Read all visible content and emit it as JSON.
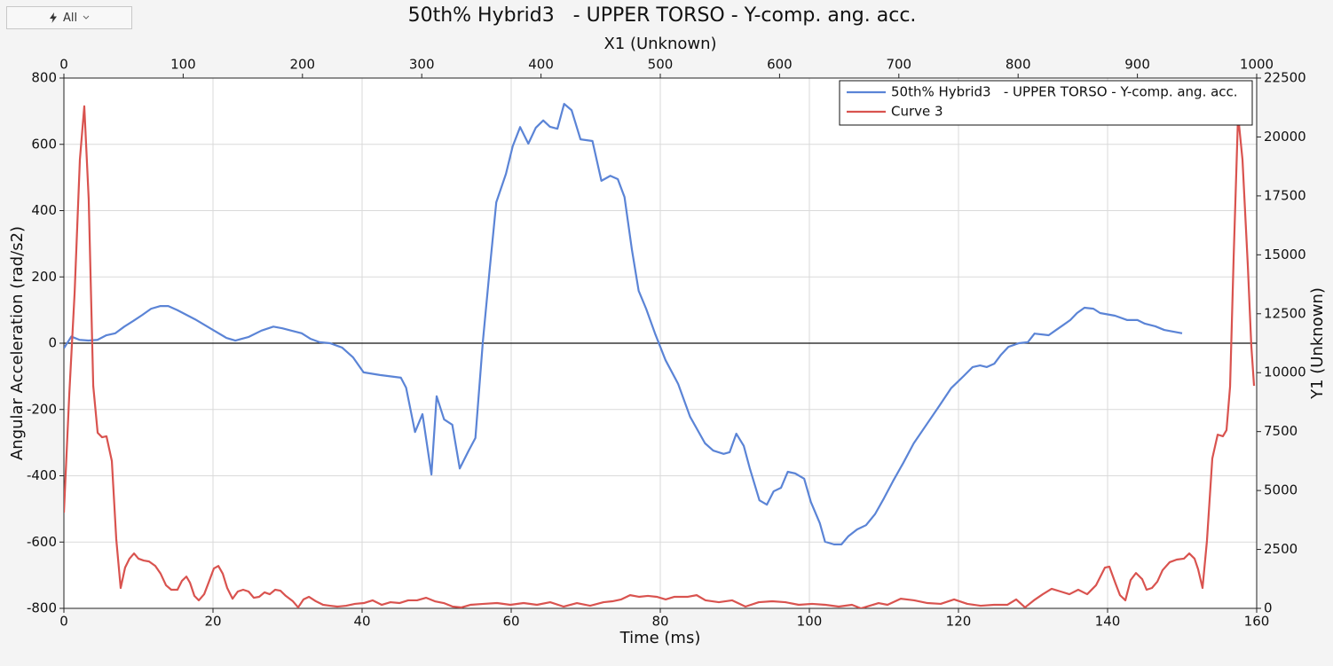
{
  "controls": {
    "filter": "All"
  },
  "chart_data": {
    "type": "line",
    "title": "50th% Hybrid3   - UPPER TORSO - Y-comp. ang. acc.",
    "xlabel": "Time (ms)",
    "ylabel": "Angular Acceleration (rad/s2)",
    "x2label": "X1 (Unknown)",
    "y2label": "Y1 (Unknown)",
    "xlim": [
      0,
      160
    ],
    "xticks": [
      0,
      20,
      40,
      60,
      80,
      100,
      120,
      140,
      160
    ],
    "ylim": [
      -800,
      800
    ],
    "yticks": [
      -800,
      -600,
      -400,
      -200,
      0,
      200,
      400,
      600,
      800
    ],
    "x2lim": [
      0,
      1000
    ],
    "x2ticks": [
      0,
      100,
      200,
      300,
      400,
      500,
      600,
      700,
      800,
      900,
      1000
    ],
    "y2lim": [
      0,
      22500
    ],
    "y2ticks": [
      0,
      2500,
      5000,
      7500,
      10000,
      12500,
      15000,
      17500,
      20000,
      22500
    ],
    "grid": true,
    "zero_line": true,
    "legend": "upper right",
    "series": [
      {
        "name": "50th% Hybrid3   - UPPER TORSO - Y-comp. ang. acc.",
        "color": "#5b84d6",
        "label_color": "#3558c0",
        "x": [
          0,
          1,
          2.1,
          3.3,
          4.5,
          5.7,
          6.9,
          8.1,
          9.3,
          10.5,
          11.7,
          12.9,
          14,
          15.2,
          17.6,
          20,
          21.8,
          23,
          24.8,
          26.5,
          28.1,
          29.3,
          30.5,
          31.9,
          33.1,
          34.3,
          35.7,
          37.3,
          38.8,
          40.2,
          42.4,
          43.8,
          45.2,
          45.9,
          47.1,
          48.1,
          49.3,
          50,
          51,
          52.1,
          53.1,
          54.3,
          55.2,
          56.2,
          57.1,
          58,
          59.3,
          60.2,
          61.2,
          62.3,
          63.3,
          64.3,
          65.2,
          66.2,
          67.1,
          68.1,
          69.3,
          70.9,
          72.1,
          73.3,
          74.3,
          75.2,
          76.2,
          77.1,
          78.1,
          79.3,
          80.7,
          82.4,
          84,
          86,
          87.1,
          88.5,
          89.3,
          90.2,
          91.2,
          92,
          93.3,
          94.3,
          95.2,
          96.2,
          97.1,
          98.1,
          99.3,
          100.2,
          101.4,
          102.1,
          103.3,
          104.3,
          105.2,
          106.4,
          107.6,
          108.8,
          110,
          111.2,
          112.6,
          114,
          115.7,
          117.4,
          119,
          120.7,
          121.9,
          122.9,
          123.8,
          124.8,
          125.7,
          126.7,
          128.1,
          129.3,
          130.2,
          132.1,
          133.1,
          134,
          135,
          135.9,
          136.9,
          138.1,
          139,
          141,
          142.6,
          144,
          145,
          146.4,
          147.6,
          148.8,
          150
        ],
        "values": [
          -15,
          20,
          10,
          8,
          10,
          24,
          30,
          50,
          67,
          85,
          104,
          112,
          112,
          100,
          72,
          40,
          16,
          8,
          19,
          38,
          50,
          45,
          38,
          30,
          13,
          3,
          0,
          -13,
          -43,
          -88,
          -96,
          -100,
          -104,
          -134,
          -268,
          -214,
          -396,
          -160,
          -230,
          -246,
          -378,
          -324,
          -286,
          5,
          219,
          425,
          511,
          594,
          652,
          602,
          650,
          672,
          653,
          647,
          722,
          703,
          615,
          610,
          490,
          505,
          495,
          441,
          281,
          158,
          104,
          29,
          -51,
          -123,
          -222,
          -302,
          -324,
          -334,
          -329,
          -273,
          -310,
          -377,
          -474,
          -487,
          -447,
          -436,
          -388,
          -393,
          -409,
          -479,
          -543,
          -599,
          -607,
          -607,
          -583,
          -562,
          -549,
          -516,
          -468,
          -417,
          -361,
          -302,
          -246,
          -190,
          -136,
          -99,
          -72,
          -67,
          -72,
          -62,
          -35,
          -11,
          0,
          3,
          29,
          24,
          40,
          54,
          70,
          91,
          107,
          104,
          91,
          83,
          70,
          70,
          59,
          51,
          40,
          35,
          30
        ]
      },
      {
        "name": "Curve 3",
        "color": "#d9534f",
        "label_color": "#c8302c",
        "axis": "y2",
        "xaxis": "x2",
        "x": [
          0,
          4.5,
          9,
          13.4,
          17.1,
          20.8,
          24.6,
          28.3,
          32,
          35.7,
          40.2,
          43.9,
          47.6,
          51.3,
          55,
          58.8,
          62.5,
          66.9,
          71.4,
          76.6,
          81.1,
          85.6,
          90,
          95.2,
          99,
          102.7,
          105.7,
          109.4,
          113.1,
          117.6,
          121.3,
          125.7,
          129.5,
          133.2,
          136.9,
          141.4,
          145.8,
          150.3,
          154.8,
          159.2,
          163.7,
          168.2,
          172.6,
          177.1,
          181.5,
          186,
          192,
          196.4,
          200.9,
          205.4,
          211.3,
          217.3,
          223.2,
          229.2,
          236.6,
          244,
          251.5,
          258.9,
          266.4,
          273.8,
          281.3,
          288.7,
          296.1,
          303.6,
          311,
          318.5,
          325.9,
          333.3,
          340.8,
          351.9,
          363.1,
          374.3,
          385.4,
          396.6,
          407.7,
          418.9,
          430.1,
          441.2,
          452.4,
          459.8,
          467.3,
          474.7,
          482.1,
          489.6,
          497,
          504.5,
          511.9,
          523.1,
          530.5,
          537.9,
          549.1,
          560.3,
          571.4,
          582.6,
          593.8,
          604.9,
          616.1,
          627.2,
          638.4,
          649.6,
          660.7,
          668.2,
          675.6,
          683,
          690.5,
          701.6,
          712.8,
          724,
          735.1,
          746.3,
          757.4,
          768.6,
          779.8,
          790.9,
          798.4,
          805.8,
          813.2,
          820.7,
          828.1,
          835.6,
          843,
          850.4,
          857.9,
          865.3,
          872.8,
          876.5,
          881.7,
          885.4,
          889.9,
          894.3,
          898.8,
          904,
          907.7,
          912.2,
          916.7,
          921.1,
          927.1,
          933,
          939,
          943.5,
          947.9,
          950.9,
          954.6,
          958.3,
          962.8,
          967.3,
          971.7,
          974.7,
          977.7,
          980.7,
          984.4,
          988.1,
          992.6,
          995.5,
          997.8
        ],
        "values": [
          4060,
          9070,
          13400,
          19040,
          21300,
          17350,
          9440,
          7450,
          7260,
          7300,
          6250,
          2935,
          865,
          1730,
          2110,
          2330,
          2110,
          2030,
          1990,
          1800,
          1470,
          980,
          790,
          790,
          1170,
          1350,
          1090,
          530,
          340,
          600,
          1090,
          1690,
          1800,
          1470,
          865,
          410,
          715,
          790,
          715,
          450,
          490,
          680,
          600,
          790,
          750,
          530,
          300,
          40,
          380,
          490,
          300,
          150,
          110,
          75,
          110,
          190,
          225,
          340,
          150,
          260,
          225,
          340,
          340,
          450,
          300,
          225,
          75,
          40,
          150,
          190,
          225,
          150,
          225,
          150,
          260,
          75,
          225,
          110,
          260,
          300,
          380,
          560,
          490,
          530,
          490,
          380,
          490,
          490,
          560,
          340,
          260,
          340,
          75,
          260,
          300,
          260,
          150,
          190,
          150,
          75,
          150,
          0,
          110,
          225,
          150,
          410,
          340,
          225,
          190,
          380,
          190,
          110,
          150,
          150,
          380,
          40,
          340,
          600,
          830,
          715,
          600,
          790,
          600,
          980,
          1730,
          1770,
          1050,
          560,
          340,
          1200,
          1500,
          1240,
          790,
          865,
          1130,
          1620,
          1960,
          2070,
          2110,
          2330,
          2110,
          1660,
          865,
          2860,
          6360,
          7370,
          7300,
          7560,
          9410,
          14900,
          20920,
          19040,
          14520,
          11140,
          9440
        ]
      }
    ]
  }
}
